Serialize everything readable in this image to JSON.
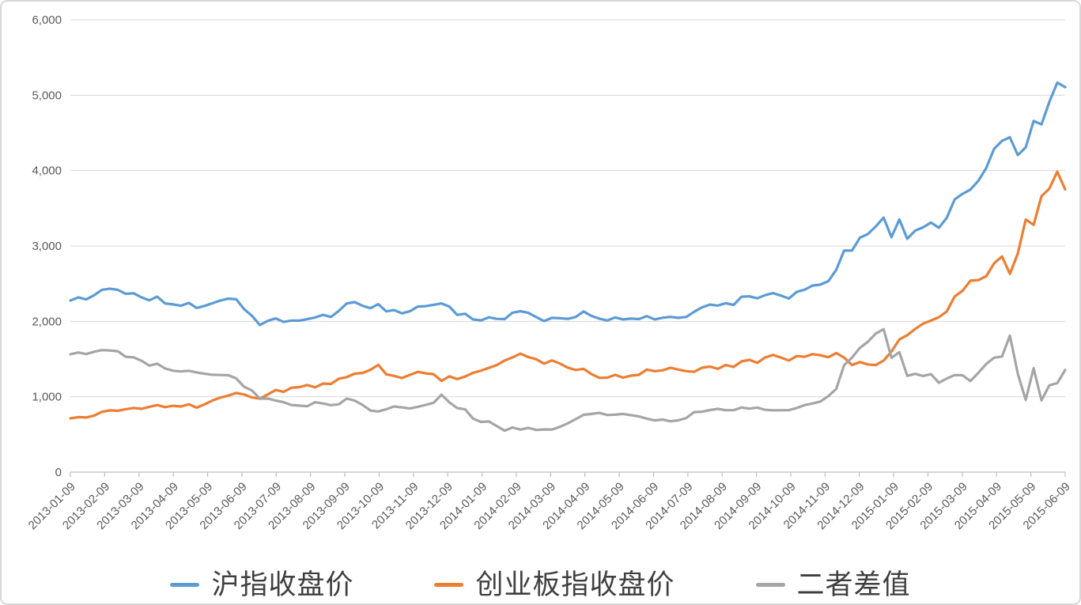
{
  "chart": {
    "background_color": "#FFFFFF",
    "border_color": "#D7D7D7",
    "gridline_color": "#D9D9D9",
    "axis_line_color": "#BFBFBF",
    "tick_label_color": "#595959",
    "legend_text_color": "#3F3F3F"
  },
  "chart_data": {
    "type": "line",
    "title": "",
    "xlabel": "",
    "ylabel": "",
    "ylim": [
      0,
      6000
    ],
    "y_step": 1000,
    "grid": "horizontal",
    "legend_position": "bottom",
    "y_tick_labels": [
      "6,000",
      "5,000",
      "4,000",
      "3,000",
      "2,000",
      "1,000",
      "0"
    ],
    "x_tick_labels": [
      "2013-01-09",
      "2013-02-09",
      "2013-03-09",
      "2013-04-09",
      "2013-05-09",
      "2013-06-09",
      "2013-07-09",
      "2013-08-09",
      "2013-09-09",
      "2013-10-09",
      "2013-11-09",
      "2013-12-09",
      "2014-01-09",
      "2014-02-09",
      "2014-03-09",
      "2014-04-09",
      "2014-05-09",
      "2014-06-09",
      "2014-07-09",
      "2014-08-09",
      "2014-09-09",
      "2014-10-09",
      "2014-11-09",
      "2014-12-09",
      "2015-01-09",
      "2015-02-09",
      "2015-03-09",
      "2015-04-09",
      "2015-05-09",
      "2015-06-09"
    ],
    "series": [
      {
        "name": "沪指收盘价",
        "color": "#5B9BD5",
        "values": [
          2276,
          2317,
          2291,
          2346,
          2419,
          2432,
          2418,
          2365,
          2373,
          2318,
          2279,
          2328,
          2237,
          2225,
          2207,
          2245,
          2178,
          2205,
          2241,
          2276,
          2301,
          2293,
          2162,
          2074,
          1951,
          2007,
          2039,
          1992,
          2011,
          2010,
          2029,
          2052,
          2086,
          2058,
          2140,
          2236,
          2255,
          2207,
          2174,
          2228,
          2132,
          2149,
          2106,
          2134,
          2196,
          2202,
          2220,
          2237,
          2196,
          2085,
          2101,
          2026,
          2013,
          2054,
          2033,
          2030,
          2115,
          2135,
          2113,
          2057,
          2004,
          2047,
          2041,
          2033,
          2058,
          2131,
          2072,
          2036,
          2011,
          2052,
          2026,
          2036,
          2030,
          2070,
          2026,
          2048,
          2059,
          2047,
          2058,
          2126,
          2186,
          2223,
          2209,
          2241,
          2217,
          2327,
          2332,
          2306,
          2348,
          2375,
          2341,
          2302,
          2391,
          2420,
          2475,
          2487,
          2533,
          2683,
          2938,
          2939,
          3109,
          3157,
          3258,
          3376,
          3116,
          3351,
          3095,
          3204,
          3246,
          3310,
          3241,
          3372,
          3617,
          3691,
          3748,
          3864,
          4034,
          4288,
          4394,
          4441,
          4205,
          4308,
          4658,
          4612,
          4911,
          5166,
          5106
        ]
      },
      {
        "name": "创业板指收盘价",
        "color": "#ED7D31",
        "values": [
          713,
          730,
          725,
          750,
          800,
          819,
          814,
          835,
          851,
          840,
          866,
          890,
          862,
          880,
          871,
          900,
          855,
          900,
          950,
          988,
          1015,
          1050,
          1030,
          990,
          975,
          1030,
          1090,
          1065,
          1120,
          1128,
          1155,
          1125,
          1175,
          1170,
          1240,
          1260,
          1306,
          1315,
          1357,
          1423,
          1298,
          1277,
          1248,
          1290,
          1330,
          1310,
          1300,
          1210,
          1270,
          1235,
          1268,
          1316,
          1347,
          1382,
          1420,
          1480,
          1522,
          1571,
          1526,
          1498,
          1438,
          1482,
          1440,
          1386,
          1355,
          1370,
          1300,
          1250,
          1253,
          1290,
          1254,
          1280,
          1290,
          1360,
          1340,
          1350,
          1385,
          1360,
          1340,
          1330,
          1385,
          1400,
          1370,
          1420,
          1395,
          1470,
          1490,
          1450,
          1521,
          1555,
          1520,
          1480,
          1540,
          1530,
          1565,
          1550,
          1524,
          1580,
          1520,
          1420,
          1460,
          1429,
          1420,
          1480,
          1600,
          1760,
          1817,
          1900,
          1970,
          2010,
          2056,
          2130,
          2330,
          2406,
          2540,
          2547,
          2599,
          2770,
          2860,
          2630,
          2900,
          3350,
          3280,
          3660,
          3760,
          3985,
          3750
        ]
      },
      {
        "name": "二者差值",
        "color": "#A5A5A5",
        "values": [
          1563,
          1587,
          1566,
          1596,
          1619,
          1613,
          1604,
          1530,
          1522,
          1478,
          1413,
          1438,
          1375,
          1345,
          1336,
          1345,
          1323,
          1305,
          1291,
          1288,
          1286,
          1243,
          1132,
          1084,
          976,
          977,
          949,
          927,
          891,
          882,
          874,
          927,
          911,
          888,
          900,
          976,
          949,
          892,
          817,
          805,
          834,
          872,
          858,
          844,
          866,
          892,
          920,
          1027,
          926,
          850,
          833,
          710,
          666,
          672,
          613,
          550,
          593,
          564,
          587,
          559,
          566,
          565,
          601,
          647,
          703,
          761,
          772,
          786,
          758,
          762,
          772,
          756,
          740,
          710,
          686,
          698,
          674,
          687,
          718,
          796,
          801,
          823,
          839,
          821,
          822,
          857,
          842,
          856,
          827,
          820,
          821,
          822,
          851,
          890,
          910,
          937,
          1009,
          1103,
          1418,
          1519,
          1649,
          1728,
          1838,
          1896,
          1516,
          1591,
          1278,
          1304,
          1276,
          1300,
          1185,
          1242,
          1287,
          1285,
          1208,
          1317,
          1435,
          1518,
          1534,
          1811,
          1305,
          958,
          1378,
          952,
          1151,
          1181,
          1356
        ]
      }
    ]
  }
}
